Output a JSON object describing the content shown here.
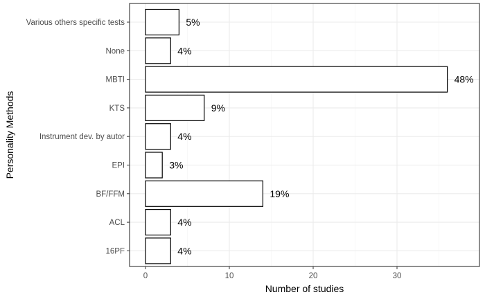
{
  "chart_data": {
    "type": "bar",
    "orientation": "horizontal",
    "xlabel": "Number of studies",
    "ylabel": "Personality Methods",
    "xlim": [
      0,
      39.5
    ],
    "x_ticks": [
      "0",
      "10",
      "20",
      "30"
    ],
    "grid": true,
    "categories": [
      "Various others specific tests",
      "None",
      "MBTI",
      "KTS",
      "Instrument dev. by autor",
      "EPI",
      "BF/FFM",
      "ACL",
      "16PF"
    ],
    "values": [
      4,
      3,
      36,
      7,
      3,
      2,
      14,
      3,
      3
    ],
    "labels": [
      "5%",
      "4%",
      "48%",
      "9%",
      "4%",
      "3%",
      "19%",
      "4%",
      "4%"
    ]
  }
}
